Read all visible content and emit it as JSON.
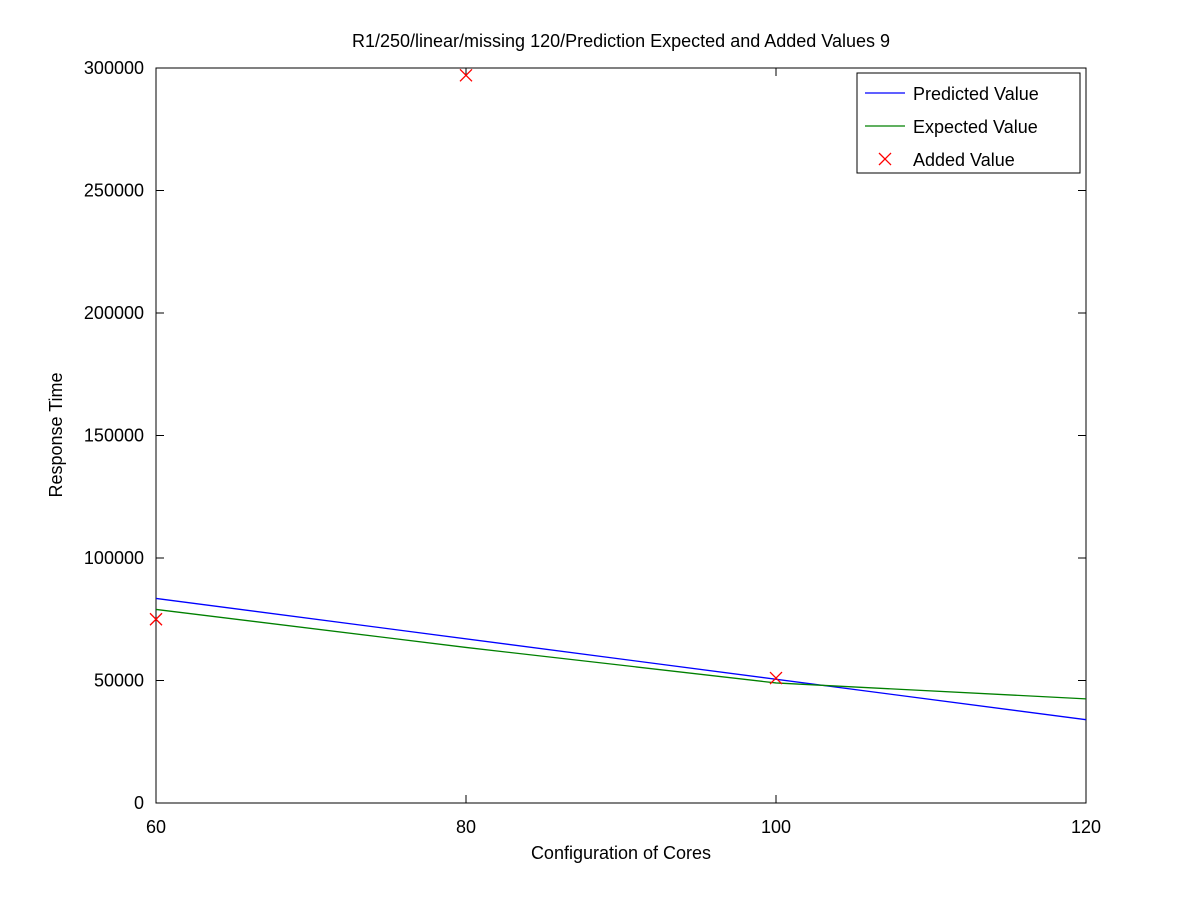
{
  "chart_data": {
    "type": "line",
    "title": "R1/250/linear/missing 120/Prediction Expected and Added Values 9",
    "xlabel": "Configuration of Cores",
    "ylabel": "Response Time",
    "xlim": [
      60,
      120
    ],
    "ylim": [
      0,
      300000
    ],
    "xticks": [
      60,
      80,
      100,
      120
    ],
    "yticks": [
      0,
      50000,
      100000,
      150000,
      200000,
      250000,
      300000
    ],
    "grid": false,
    "legend_position": "top-right",
    "series": [
      {
        "name": "Predicted Value",
        "kind": "line",
        "color": "#0000ff",
        "x": [
          60,
          120
        ],
        "y": [
          83500,
          34000
        ]
      },
      {
        "name": "Expected Value",
        "kind": "line",
        "color": "#008000",
        "x": [
          60,
          80,
          100,
          120
        ],
        "y": [
          79000,
          63500,
          49000,
          42500
        ]
      },
      {
        "name": "Added Value",
        "kind": "marker",
        "marker": "x",
        "color": "#ff0000",
        "x": [
          60,
          80,
          100
        ],
        "y": [
          75000,
          297000,
          51000
        ]
      }
    ]
  }
}
